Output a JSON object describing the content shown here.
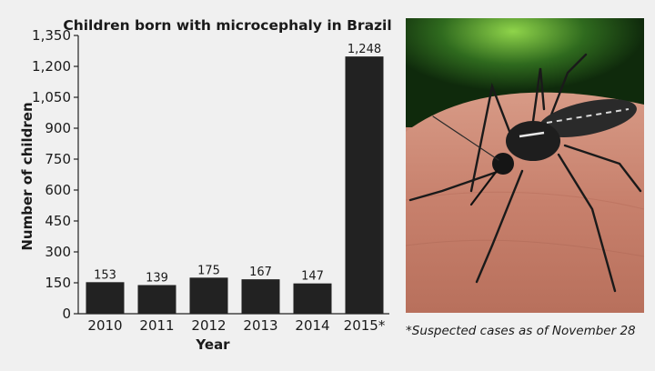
{
  "chart_data": {
    "type": "bar",
    "title": "Children born with microcephaly in Brazil",
    "xlabel": "Year",
    "ylabel": "Number of children",
    "categories": [
      "2010",
      "2011",
      "2012",
      "2013",
      "2014",
      "2015*"
    ],
    "values": [
      153,
      139,
      175,
      167,
      147,
      1248
    ],
    "data_labels": [
      "153",
      "139",
      "175",
      "167",
      "147",
      "1,248"
    ],
    "yticks": [
      "0",
      "150",
      "300",
      "450",
      "600",
      "750",
      "900",
      "1,050",
      "1,200",
      "1,350"
    ],
    "ylim": [
      0,
      1350
    ],
    "grid": false,
    "bar_color": "#222222"
  },
  "photo": {
    "subject": "aedes-mosquito-on-skin"
  },
  "footnote": "*Suspected cases as of November 28"
}
